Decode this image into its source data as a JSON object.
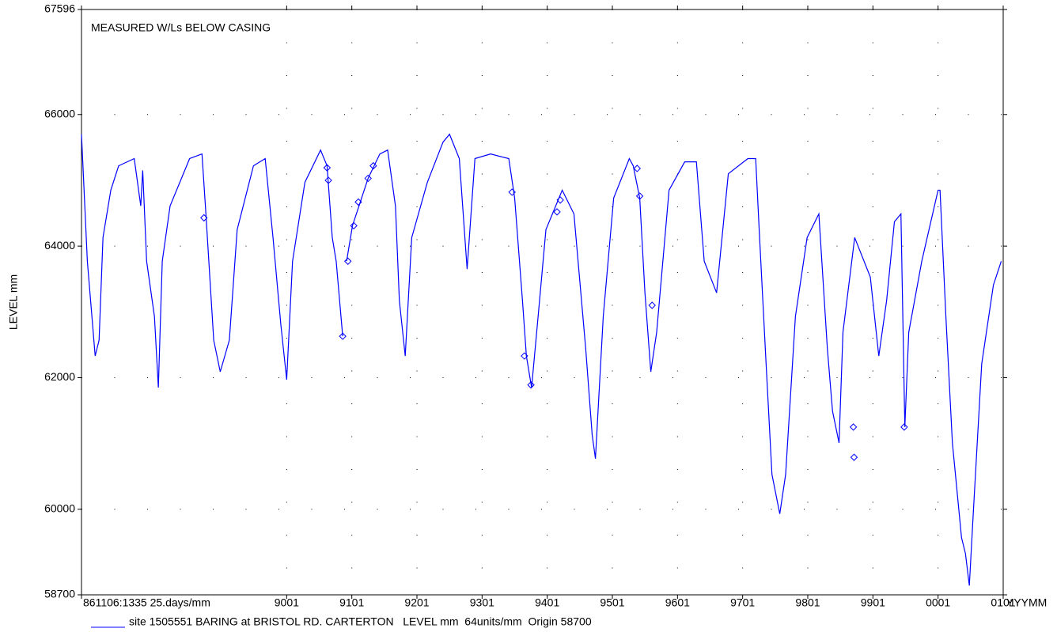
{
  "chart_data": {
    "type": "line",
    "annotation": "MEASURED W/Ls BELOW CASING",
    "y_label": "LEVEL mm",
    "x_label": "YYYMM",
    "xlim": [
      1986.85,
      2001.0
    ],
    "xticks": [
      {
        "value": 1986.85,
        "label": "861106:1335 25.days/mm"
      },
      {
        "value": 1990,
        "label": "9001"
      },
      {
        "value": 1991,
        "label": "9101"
      },
      {
        "value": 1992,
        "label": "9201"
      },
      {
        "value": 1993,
        "label": "9301"
      },
      {
        "value": 1994,
        "label": "9401"
      },
      {
        "value": 1995,
        "label": "9501"
      },
      {
        "value": 1996,
        "label": "9601"
      },
      {
        "value": 1997,
        "label": "9701"
      },
      {
        "value": 1998,
        "label": "9801"
      },
      {
        "value": 1999,
        "label": "9901"
      },
      {
        "value": 2000,
        "label": "0001"
      },
      {
        "value": 2001,
        "label": "0101"
      }
    ],
    "ylim": [
      58700,
      67596
    ],
    "yticks": [
      58700,
      60000,
      62000,
      64000,
      66000,
      67596
    ],
    "grid": true,
    "legend": "bottom-left",
    "series": [
      {
        "name": "site 1505551 BARING at BRISTOL RD. CARTERTON   LEVEL mm  64units/mm  Origin 58700",
        "color": "#0000ff",
        "x": [
          1986.85,
          1986.94,
          1987.06,
          1987.12,
          1987.18,
          1987.3,
          1987.42,
          1987.66,
          1987.76,
          1987.79,
          1987.85,
          1987.97,
          1988.03,
          1988.09,
          1988.21,
          1988.51,
          1988.7,
          1988.76,
          1988.88,
          1988.98,
          1989.12,
          1989.24,
          1989.49,
          1989.67,
          1989.79,
          1989.91,
          1990.0,
          1990.09,
          1990.28,
          1990.52,
          1990.62,
          1990.7,
          1990.76,
          1990.86,
          1990.89,
          1990.92,
          1991.01,
          1991.13,
          1991.25,
          1991.43,
          1991.55,
          1991.67,
          1991.73,
          1991.82,
          1991.92,
          1992.16,
          1992.4,
          1992.5,
          1992.65,
          1992.77,
          1992.89,
          1993.13,
          1993.41,
          1993.5,
          1993.62,
          1993.68,
          1993.76,
          1993.86,
          1993.98,
          1994.23,
          1994.41,
          1994.59,
          1994.69,
          1994.74,
          1994.86,
          1995.02,
          1995.26,
          1995.32,
          1995.42,
          1995.5,
          1995.59,
          1995.68,
          1995.87,
          1996.11,
          1996.29,
          1996.41,
          1996.6,
          1996.78,
          1997.08,
          1997.2,
          1997.26,
          1997.36,
          1997.45,
          1997.57,
          1997.66,
          1997.81,
          1997.99,
          1998.17,
          1998.3,
          1998.38,
          1998.48,
          1998.54,
          1998.72,
          1998.96,
          1999.09,
          1999.21,
          1999.33,
          1999.43,
          1999.49,
          1999.55,
          1999.75,
          2000.0,
          2000.03,
          2000.12,
          2000.22,
          2000.36,
          2000.42,
          2000.48,
          2000.54,
          2000.67,
          2000.85,
          2000.97
        ],
        "values": [
          65700,
          63770,
          62330,
          62570,
          64130,
          64850,
          65220,
          65330,
          64610,
          65150,
          63770,
          62930,
          61850,
          63770,
          64610,
          65330,
          65400,
          64490,
          62570,
          62090,
          62570,
          64250,
          65220,
          65330,
          64130,
          62810,
          61970,
          63770,
          64970,
          65460,
          65220,
          64130,
          63770,
          62630,
          null,
          63770,
          64310,
          64670,
          65030,
          65400,
          65460,
          64610,
          63170,
          62330,
          64130,
          64970,
          65580,
          65700,
          65330,
          63650,
          65330,
          65400,
          65330,
          64730,
          63170,
          62330,
          61850,
          62930,
          64250,
          64850,
          64490,
          62450,
          61130,
          60770,
          62930,
          64730,
          65330,
          65220,
          64730,
          63290,
          62090,
          62690,
          64850,
          65280,
          65280,
          63770,
          63290,
          65100,
          65330,
          65330,
          64130,
          62210,
          60530,
          59930,
          60530,
          62930,
          64130,
          64490,
          62450,
          61490,
          61010,
          62690,
          64130,
          63530,
          62330,
          63170,
          64370,
          64490,
          61250,
          62690,
          63770,
          64850,
          64850,
          62930,
          61010,
          59570,
          59330,
          58840,
          59930,
          62210,
          63410,
          63770
        ]
      },
      {
        "color": "#0000ff",
        "marker": "diamond",
        "x": [
          1988.73,
          1990.62,
          1990.64,
          1990.86,
          1990.94,
          1991.03,
          1991.1,
          1991.25,
          1991.33,
          1993.46,
          1993.65,
          1993.75,
          1994.15,
          1994.2,
          1995.38,
          1995.42,
          1995.61,
          1998.7,
          1998.71,
          1999.48
        ],
        "values": [
          64430,
          65190,
          65000,
          62630,
          63770,
          64310,
          64670,
          65030,
          65220,
          64820,
          62330,
          61890,
          64520,
          64700,
          65180,
          64760,
          63100,
          61250,
          60790,
          61250
        ]
      }
    ]
  }
}
